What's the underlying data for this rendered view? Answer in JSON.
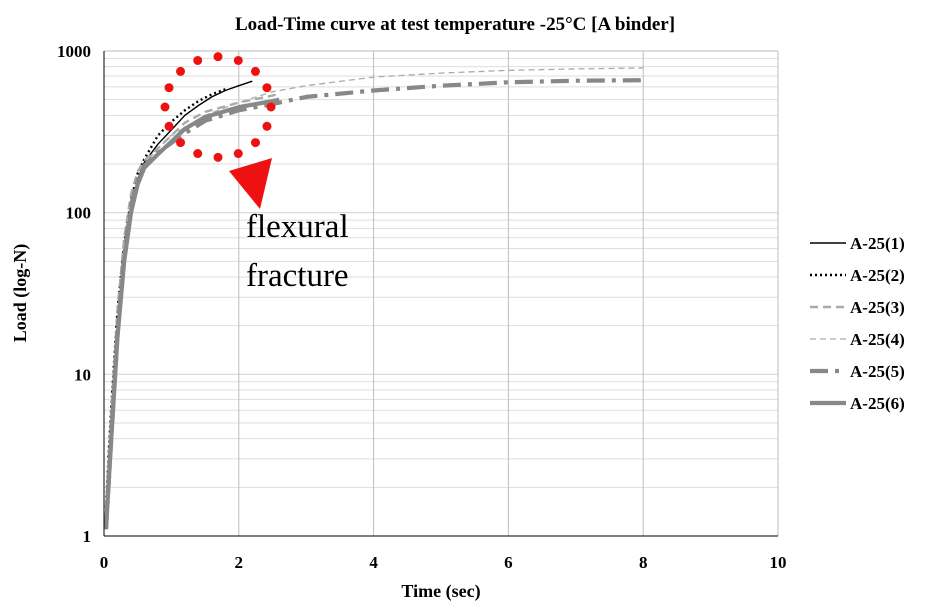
{
  "chart_data": {
    "type": "line",
    "title": "Load-Time curve at test temperature -25°C [A binder]",
    "xlabel": "Time (sec)",
    "ylabel": "Load (log-N)",
    "xlim": [
      0,
      10
    ],
    "ylim": [
      1,
      1000
    ],
    "y_scale": "log",
    "x_ticks": [
      0,
      2,
      4,
      6,
      8,
      10
    ],
    "y_ticks": [
      1,
      10,
      100,
      1000
    ],
    "grid": true,
    "legend_position": "right",
    "annotation": {
      "text_lines": [
        "flexural",
        "fracture"
      ],
      "marker": "red dotted circle with arrow",
      "color": "#ee1111"
    },
    "series": [
      {
        "name": "A-25(1)",
        "color": "#000000",
        "style": "solid-thin",
        "points": [
          [
            0.05,
            1.2
          ],
          [
            0.1,
            3
          ],
          [
            0.15,
            7
          ],
          [
            0.2,
            15
          ],
          [
            0.3,
            45
          ],
          [
            0.4,
            100
          ],
          [
            0.5,
            160
          ],
          [
            0.6,
            205
          ],
          [
            0.8,
            265
          ],
          [
            1.0,
            325
          ],
          [
            1.2,
            400
          ],
          [
            1.4,
            460
          ],
          [
            1.6,
            520
          ],
          [
            1.8,
            570
          ],
          [
            2.0,
            610
          ],
          [
            2.2,
            650
          ]
        ]
      },
      {
        "name": "A-25(2)",
        "color": "#000000",
        "style": "dotted",
        "points": [
          [
            0.03,
            1.5
          ],
          [
            0.08,
            4
          ],
          [
            0.15,
            12
          ],
          [
            0.2,
            25
          ],
          [
            0.3,
            65
          ],
          [
            0.4,
            120
          ],
          [
            0.5,
            175
          ],
          [
            0.6,
            215
          ],
          [
            0.8,
            300
          ],
          [
            1.0,
            365
          ],
          [
            1.2,
            430
          ],
          [
            1.4,
            490
          ],
          [
            1.6,
            540
          ],
          [
            1.8,
            580
          ]
        ]
      },
      {
        "name": "A-25(3)",
        "color": "#aaaaaa",
        "style": "dashed",
        "points": [
          [
            0.03,
            1.5
          ],
          [
            0.1,
            5
          ],
          [
            0.2,
            25
          ],
          [
            0.3,
            70
          ],
          [
            0.4,
            130
          ],
          [
            0.5,
            180
          ],
          [
            0.6,
            210
          ],
          [
            0.8,
            250
          ],
          [
            1.0,
            300
          ],
          [
            1.2,
            360
          ],
          [
            1.5,
            420
          ],
          [
            2.0,
            480
          ],
          [
            2.5,
            530
          ],
          [
            2.6,
            545
          ]
        ]
      },
      {
        "name": "A-25(4)",
        "color": "#aaaaaa",
        "style": "dashed-thin",
        "points": [
          [
            0.03,
            1.2
          ],
          [
            0.1,
            4
          ],
          [
            0.2,
            20
          ],
          [
            0.3,
            60
          ],
          [
            0.4,
            120
          ],
          [
            0.6,
            200
          ],
          [
            0.8,
            250
          ],
          [
            1.0,
            300
          ],
          [
            1.5,
            400
          ],
          [
            2.0,
            480
          ],
          [
            2.5,
            560
          ],
          [
            3.0,
            610
          ],
          [
            4.0,
            690
          ],
          [
            5.0,
            730
          ],
          [
            6.0,
            760
          ],
          [
            7.0,
            775
          ],
          [
            8.0,
            785
          ]
        ]
      },
      {
        "name": "A-25(5)",
        "color": "#888888",
        "style": "dash-dot-thick",
        "points": [
          [
            0.03,
            1.1
          ],
          [
            0.1,
            3.5
          ],
          [
            0.2,
            18
          ],
          [
            0.3,
            55
          ],
          [
            0.4,
            110
          ],
          [
            0.5,
            160
          ],
          [
            0.6,
            195
          ],
          [
            0.8,
            235
          ],
          [
            1.0,
            270
          ],
          [
            1.2,
            310
          ],
          [
            1.5,
            370
          ],
          [
            2.0,
            430
          ],
          [
            2.5,
            470
          ],
          [
            3.0,
            520
          ],
          [
            4.0,
            570
          ],
          [
            5.0,
            610
          ],
          [
            6.0,
            640
          ],
          [
            7.0,
            655
          ],
          [
            8.0,
            660
          ]
        ]
      },
      {
        "name": "A-25(6)",
        "color": "#888888",
        "style": "solid-thick",
        "points": [
          [
            0.03,
            1.1
          ],
          [
            0.1,
            3.5
          ],
          [
            0.2,
            17
          ],
          [
            0.3,
            50
          ],
          [
            0.4,
            100
          ],
          [
            0.5,
            150
          ],
          [
            0.6,
            190
          ],
          [
            0.8,
            230
          ],
          [
            1.0,
            275
          ],
          [
            1.2,
            330
          ],
          [
            1.5,
            390
          ],
          [
            2.0,
            450
          ],
          [
            2.5,
            490
          ],
          [
            2.6,
            500
          ]
        ]
      }
    ]
  }
}
